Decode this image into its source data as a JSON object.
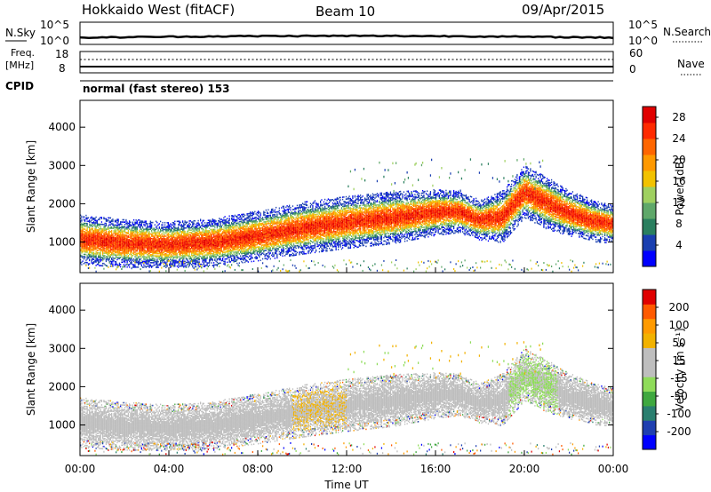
{
  "header": {
    "radar": "Hokkaido West (fitACF)",
    "beam": "Beam 10",
    "date": "09/Apr/2015"
  },
  "noise_panel": {
    "left_label": "N.Sky",
    "right_label": "N.Search",
    "left_ticks": [
      "10^5",
      "10^0"
    ],
    "right_ticks": [
      "10^5",
      "10^0"
    ]
  },
  "freq_panel": {
    "left_label_1": "Freq.",
    "left_label_2": "[MHz]",
    "left_ticks": [
      "18",
      "8"
    ],
    "right_ticks": [
      "60",
      "0"
    ],
    "right_label": "Nave",
    "cpid_label": "CPID",
    "cpid_text": "normal (fast stereo) 153"
  },
  "colors": {
    "power_scale": [
      "#0000ff",
      "#1a3fb0",
      "#2a7f5f",
      "#5fa86a",
      "#9fd060",
      "#f2c200",
      "#ff9900",
      "#ff6600",
      "#ff2a00",
      "#e00000"
    ],
    "velocity_scale": [
      "#e00000",
      "#ff5a00",
      "#ff9a00",
      "#f2b200",
      "#bebebe",
      "#bebebe",
      "#8fdc5a",
      "#3fa83f",
      "#2a7f6f",
      "#1f3fb0",
      "#0000ff"
    ]
  },
  "chart_data": [
    {
      "type": "heatmap",
      "name": "power",
      "x_ticks": [
        "00:00",
        "04:00",
        "08:00",
        "12:00",
        "16:00",
        "20:00",
        "00:00"
      ],
      "xlim_hours": [
        0,
        24
      ],
      "ylabel": "Slant Range [km]",
      "y_ticks": [
        1000,
        2000,
        3000,
        4000
      ],
      "ylim": [
        200,
        4700
      ],
      "colorbar_label": "Power [dB]",
      "colorbar_ticks": [
        4,
        8,
        12,
        16,
        20,
        24,
        28
      ],
      "colorbar_range": [
        0,
        30
      ],
      "bands": [
        {
          "hours": [
            0,
            2,
            4,
            6,
            8,
            10,
            12,
            14,
            16,
            17,
            18,
            19,
            20,
            21,
            22,
            23,
            24
          ],
          "range_km": [
            1050,
            960,
            920,
            980,
            1150,
            1350,
            1500,
            1620,
            1760,
            1780,
            1560,
            1650,
            2300,
            2000,
            1750,
            1550,
            1450
          ],
          "width_km": [
            500,
            480,
            460,
            480,
            500,
            520,
            520,
            520,
            460,
            420,
            400,
            520,
            520,
            520,
            460,
            420,
            380
          ],
          "peak_power_db": 26
        }
      ]
    },
    {
      "type": "heatmap",
      "name": "velocity",
      "x_ticks": [
        "00:00",
        "04:00",
        "08:00",
        "12:00",
        "16:00",
        "20:00",
        "00:00"
      ],
      "xlabel": "Time UT",
      "xlim_hours": [
        0,
        24
      ],
      "ylabel": "Slant Range [km]",
      "y_ticks": [
        1000,
        2000,
        3000,
        4000
      ],
      "ylim": [
        200,
        4700
      ],
      "colorbar_label": "Velocity [m s⁻¹]",
      "colorbar_ticks": [
        200,
        100,
        50,
        15,
        -15,
        -50,
        -100,
        -200
      ],
      "colorbar_range": [
        -250,
        250
      ],
      "dominant_velocity_ms": 0
    }
  ]
}
